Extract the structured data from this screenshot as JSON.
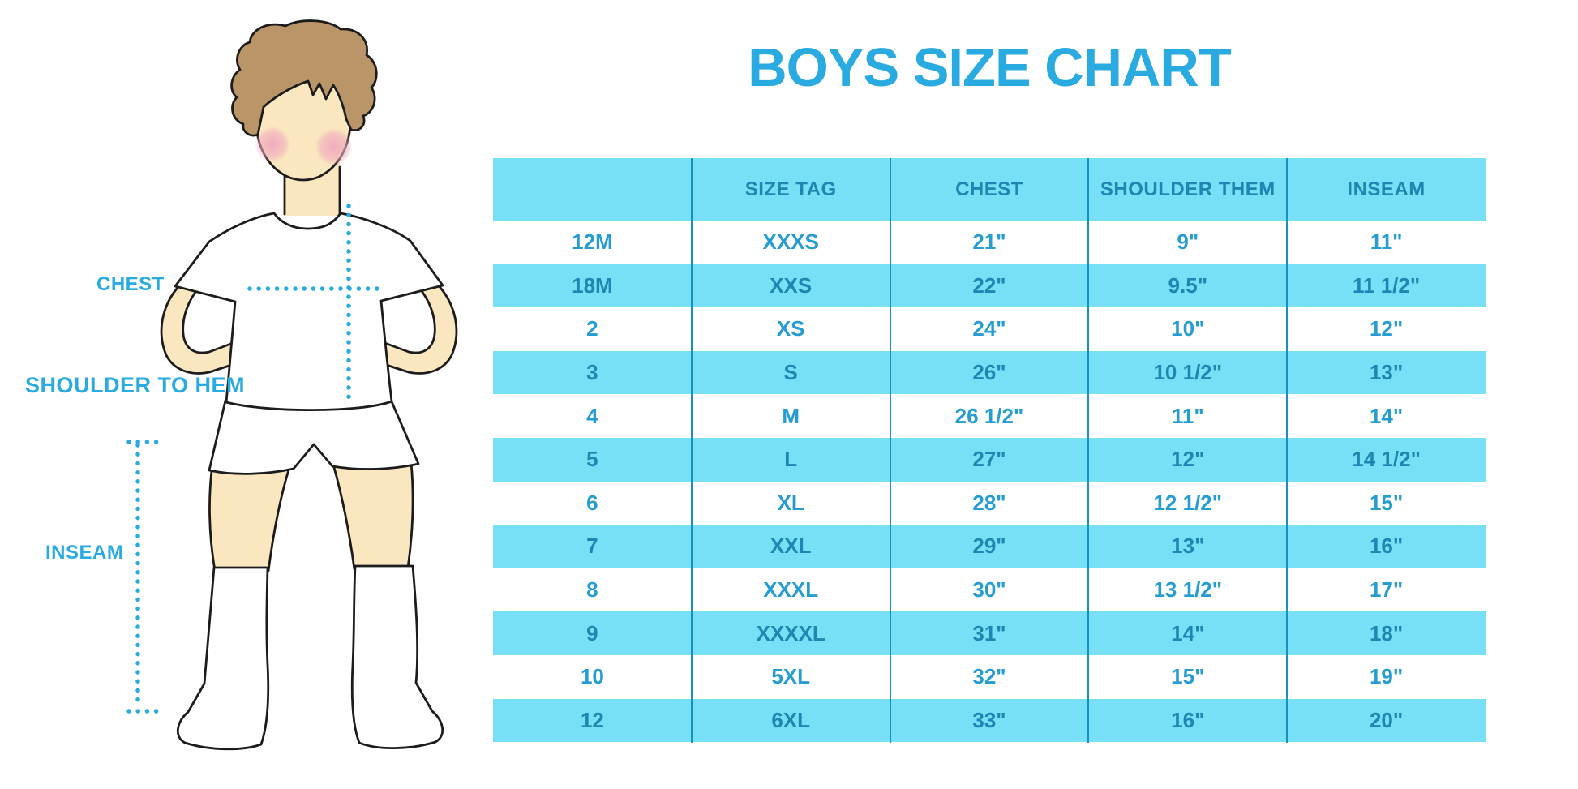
{
  "title": "BOYS SIZE CHART",
  "colors": {
    "accent": "#29abe2",
    "band": "#77dff6",
    "divider": "#1891c1",
    "header_text": "#1e86b2",
    "row_text": "#259cd2",
    "band_row_text": "#1e86b2",
    "skin": "#fae6bf",
    "hair": "#b99568",
    "blush": "#f0a9be"
  },
  "figure": {
    "labels": {
      "chest": "CHEST",
      "shoulder_to_hem": "SHOULDER TO HEM",
      "inseam": "INSEAM"
    }
  },
  "chart_data": {
    "type": "table",
    "title": "BOYS SIZE CHART",
    "columns": [
      "",
      "SIZE TAG",
      "CHEST",
      "SHOULDER THEM",
      "INSEAM"
    ],
    "rows": [
      [
        "12M",
        "XXXS",
        "21\"",
        "9\"",
        "11\""
      ],
      [
        "18M",
        "XXS",
        "22\"",
        "9.5\"",
        "11 1/2\""
      ],
      [
        "2",
        "XS",
        "24\"",
        "10\"",
        "12\""
      ],
      [
        "3",
        "S",
        "26\"",
        "10 1/2\"",
        "13\""
      ],
      [
        "4",
        "M",
        "26 1/2\"",
        "11\"",
        "14\""
      ],
      [
        "5",
        "L",
        "27\"",
        "12\"",
        "14 1/2\""
      ],
      [
        "6",
        "XL",
        "28\"",
        "12 1/2\"",
        "15\""
      ],
      [
        "7",
        "XXL",
        "29\"",
        "13\"",
        "16\""
      ],
      [
        "8",
        "XXXL",
        "30\"",
        "13 1/2\"",
        "17\""
      ],
      [
        "9",
        "XXXXL",
        "31\"",
        "14\"",
        "18\""
      ],
      [
        "10",
        "5XL",
        "32\"",
        "15\"",
        "19\""
      ],
      [
        "12",
        "6XL",
        "33\"",
        "16\"",
        "20\""
      ]
    ],
    "layout": {
      "stripe_pattern": "rows alternate white / cyan starting with white; header row cyan",
      "grid": "vertical column dividers only, no outer border"
    }
  }
}
